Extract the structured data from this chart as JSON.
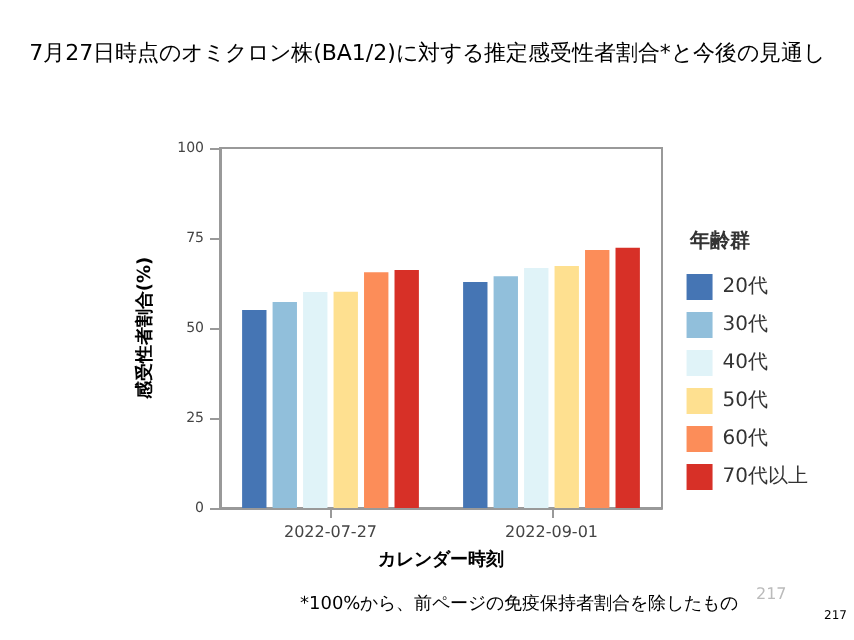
{
  "chart_data": {
    "type": "bar",
    "title": "7月27日時点のオミクロン株(BA1/2)に対する推定感受性者割合*と今後の見通し",
    "xlabel": "カレンダー時刻",
    "ylabel": "感受性者割合(%)",
    "legend_title": "年齢群",
    "categories": [
      "2022-07-27",
      "2022-09-01"
    ],
    "series": [
      {
        "name": "20代",
        "color": "#4575b4",
        "values": [
          55,
          62.8
        ]
      },
      {
        "name": "30代",
        "color": "#91bfdb",
        "values": [
          57.2,
          64.4
        ]
      },
      {
        "name": "40代",
        "color": "#e0f3f8",
        "values": [
          60,
          66.7
        ]
      },
      {
        "name": "50代",
        "color": "#fee090",
        "values": [
          60.1,
          67.2
        ]
      },
      {
        "name": "60代",
        "color": "#fc8d59",
        "values": [
          65.5,
          71.7
        ]
      },
      {
        "name": "70代以上",
        "color": "#d73027",
        "values": [
          66.1,
          72.3
        ]
      }
    ],
    "ylim": [
      0,
      100
    ],
    "yticks": [
      0,
      25,
      50,
      75,
      100
    ],
    "grid": false,
    "legend": "right",
    "annotations": [
      "*100%から、前ページの免疫保持者割合を除したもの",
      "217",
      "217"
    ]
  }
}
